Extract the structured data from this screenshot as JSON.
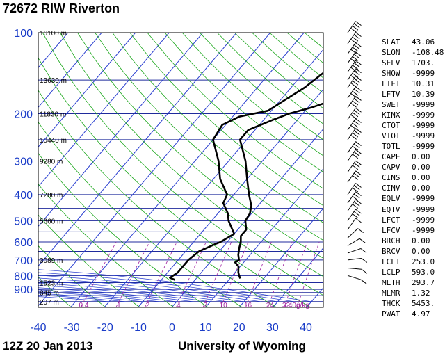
{
  "title": "72672 RIW Riverton",
  "footer": {
    "time": "12Z 20 Jan 2013",
    "source": "University of Wyoming"
  },
  "chart_data": {
    "type": "skew-t",
    "pressure_ticks": [
      "100",
      "200",
      "300",
      "400",
      "500",
      "600",
      "700",
      "800",
      "900"
    ],
    "temp_ticks": [
      "-40",
      "-30",
      "-20",
      "-10",
      "0",
      "10",
      "20",
      "30",
      "40"
    ],
    "xlim": [
      -40,
      40
    ],
    "ylim": [
      1000,
      100
    ],
    "height_labels": [
      {
        "p": 100,
        "text": "16100 m"
      },
      {
        "p": 150,
        "text": "13630 m"
      },
      {
        "p": 200,
        "text": "11830 m"
      },
      {
        "p": 250,
        "text": "10440 m"
      },
      {
        "p": 300,
        "text": "9280 m"
      },
      {
        "p": 400,
        "text": "7280 m"
      },
      {
        "p": 500,
        "text": "5660 m"
      },
      {
        "p": 700,
        "text": "3089 m"
      },
      {
        "p": 850,
        "text": "1523 m"
      },
      {
        "p": 925,
        "text": "845 m"
      },
      {
        "p": 1000,
        "text": "207 m"
      }
    ],
    "mixing_ratio_labels": [
      "0.4",
      "1",
      "2",
      "4",
      "7",
      "10",
      "16",
      "24",
      "32",
      "40g/kg"
    ],
    "temperature": [
      {
        "p": 820,
        "t": 13
      },
      {
        "p": 800,
        "t": 12
      },
      {
        "p": 780,
        "t": 11
      },
      {
        "p": 740,
        "t": 9.5
      },
      {
        "p": 715,
        "t": 7.5
      },
      {
        "p": 700,
        "t": 8
      },
      {
        "p": 670,
        "t": 6.5
      },
      {
        "p": 630,
        "t": 5
      },
      {
        "p": 600,
        "t": 4
      },
      {
        "p": 570,
        "t": 2.5
      },
      {
        "p": 540,
        "t": 2.5
      },
      {
        "p": 500,
        "t": 0
      },
      {
        "p": 470,
        "t": -0.5
      },
      {
        "p": 440,
        "t": -2
      },
      {
        "p": 400,
        "t": -5.5
      },
      {
        "p": 350,
        "t": -10
      },
      {
        "p": 300,
        "t": -15
      },
      {
        "p": 250,
        "t": -22
      },
      {
        "p": 230,
        "t": -22
      },
      {
        "p": 210,
        "t": -17
      },
      {
        "p": 200,
        "t": -14
      },
      {
        "p": 190,
        "t": -9
      },
      {
        "p": 180,
        "t": -5
      },
      {
        "p": 170,
        "t": -4
      },
      {
        "p": 150,
        "t": -4
      },
      {
        "p": 140,
        "t": -3
      },
      {
        "p": 130,
        "t": -3
      },
      {
        "p": 120,
        "t": -1.5
      },
      {
        "p": 110,
        "t": 2
      },
      {
        "p": 100,
        "t": 2.5
      }
    ],
    "dewpoint": [
      {
        "p": 830,
        "t": -6
      },
      {
        "p": 815,
        "t": -8
      },
      {
        "p": 780,
        "t": -7
      },
      {
        "p": 700,
        "t": -7
      },
      {
        "p": 650,
        "t": -6
      },
      {
        "p": 610,
        "t": -3
      },
      {
        "p": 600,
        "t": -2
      },
      {
        "p": 560,
        "t": 0
      },
      {
        "p": 500,
        "t": -5
      },
      {
        "p": 470,
        "t": -7
      },
      {
        "p": 430,
        "t": -11
      },
      {
        "p": 400,
        "t": -12
      },
      {
        "p": 350,
        "t": -18
      },
      {
        "p": 300,
        "t": -23
      },
      {
        "p": 250,
        "t": -30
      },
      {
        "p": 220,
        "t": -31
      },
      {
        "p": 205,
        "t": -28
      },
      {
        "p": 195,
        "t": -21
      },
      {
        "p": 180,
        "t": -19
      },
      {
        "p": 160,
        "t": -16
      },
      {
        "p": 140,
        "t": -14
      },
      {
        "p": 120,
        "t": -12
      },
      {
        "p": 100,
        "t": -11
      }
    ]
  },
  "stats": [
    {
      "k": "SLAT",
      "v": "43.06"
    },
    {
      "k": "SLON",
      "v": "-108.48"
    },
    {
      "k": "SELV",
      "v": "1703."
    },
    {
      "k": "SHOW",
      "v": "-9999"
    },
    {
      "k": "LIFT",
      "v": "10.31"
    },
    {
      "k": "LFTV",
      "v": "10.39"
    },
    {
      "k": "SWET",
      "v": "-9999"
    },
    {
      "k": "KINX",
      "v": "-9999"
    },
    {
      "k": "CTOT",
      "v": "-9999"
    },
    {
      "k": "VTOT",
      "v": "-9999"
    },
    {
      "k": "TOTL",
      "v": "-9999"
    },
    {
      "k": "CAPE",
      "v": "0.00"
    },
    {
      "k": "CAPV",
      "v": "0.00"
    },
    {
      "k": "CINS",
      "v": "0.00"
    },
    {
      "k": "CINV",
      "v": "0.00"
    },
    {
      "k": "EQLV",
      "v": "-9999"
    },
    {
      "k": "EQTV",
      "v": "-9999"
    },
    {
      "k": "LFCT",
      "v": "-9999"
    },
    {
      "k": "LFCV",
      "v": "-9999"
    },
    {
      "k": "BRCH",
      "v": "0.00"
    },
    {
      "k": "BRCV",
      "v": "0.00"
    },
    {
      "k": "LCLT",
      "v": "253.0"
    },
    {
      "k": "LCLP",
      "v": "593.0"
    },
    {
      "k": "MLTH",
      "v": "293.7"
    },
    {
      "k": "MLMR",
      "v": "1.32"
    },
    {
      "k": "THCK",
      "v": "5453."
    },
    {
      "k": "PWAT",
      "v": "4.97"
    }
  ],
  "colors": {
    "isobar": "#1f2a9c",
    "isotherm": "#2a3fd0",
    "dry_adiabat": "#19a619",
    "mixing_ratio": "#a020a0",
    "axis_label": "#1a3cc8",
    "profile": "#000000"
  }
}
